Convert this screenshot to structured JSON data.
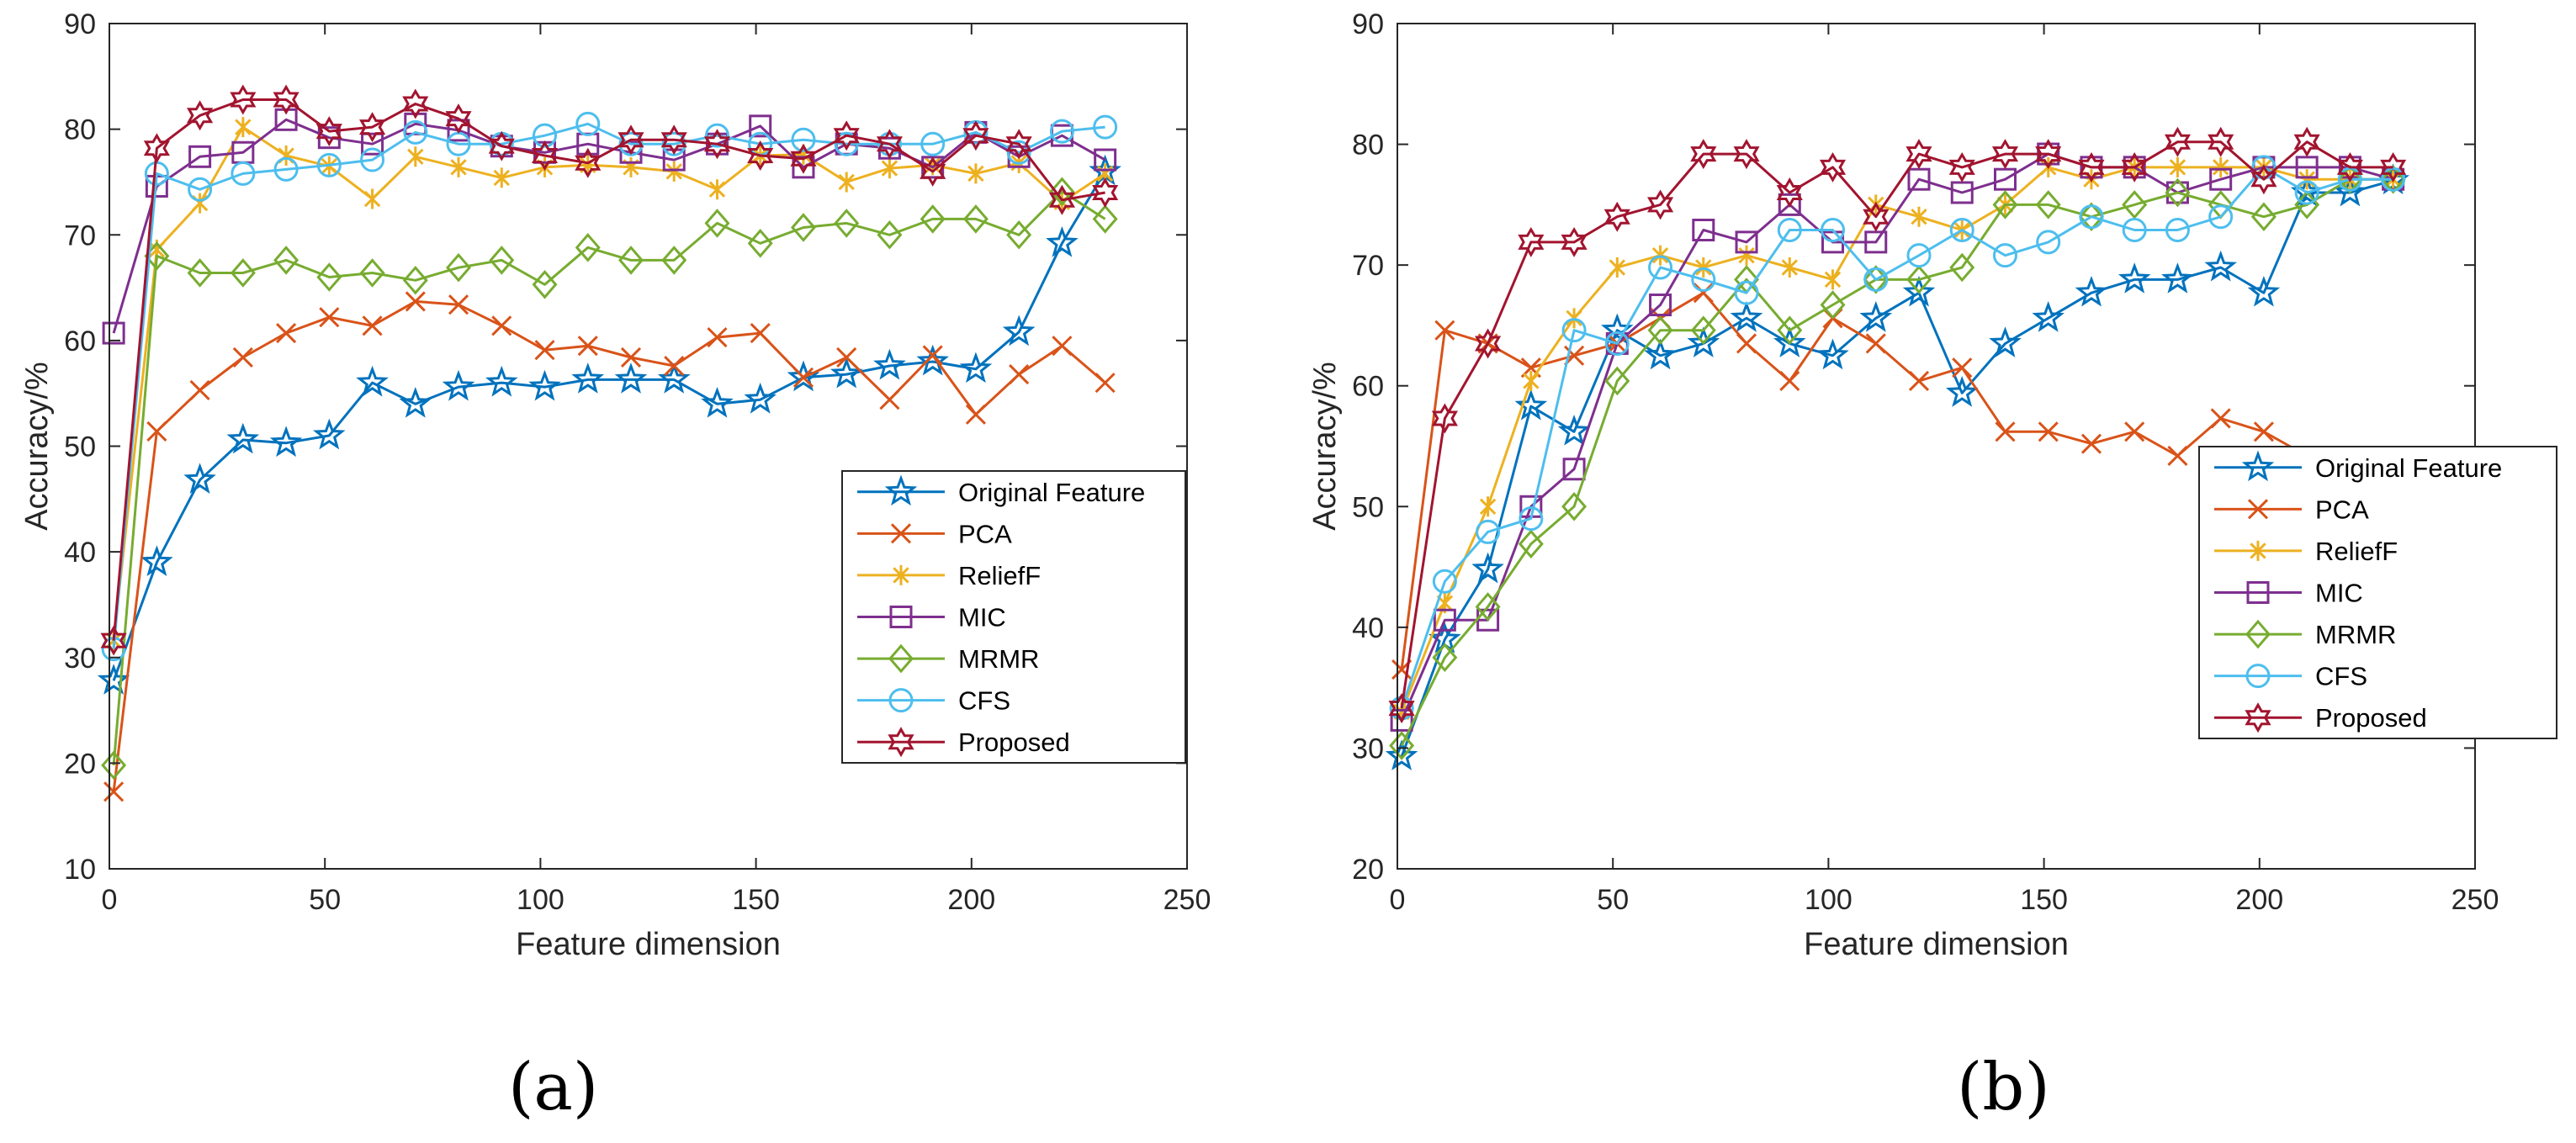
{
  "panels": [
    {
      "label": "(a)",
      "chart_data": {
        "type": "line",
        "title": "",
        "xlabel": "Feature dimension",
        "ylabel": "Accuracy/%",
        "xlim": [
          0,
          250
        ],
        "ylim": [
          10,
          90
        ],
        "xticks": [
          0,
          50,
          100,
          150,
          200,
          250
        ],
        "yticks": [
          10,
          20,
          30,
          40,
          50,
          60,
          70,
          80,
          90
        ],
        "grid": false,
        "legend_position": "lower-right",
        "x": [
          1,
          11,
          21,
          31,
          41,
          51,
          61,
          71,
          81,
          91,
          101,
          111,
          121,
          131,
          141,
          151,
          161,
          171,
          181,
          191,
          201,
          211,
          221,
          231
        ],
        "series": [
          {
            "name": "Original Feature",
            "color": "#0072BD",
            "marker": "star",
            "values": [
              27.8,
              39,
              46.8,
              50.6,
              50.3,
              51,
              56,
              54,
              55.6,
              56,
              55.6,
              56.3,
              56.3,
              56.3,
              54,
              54.4,
              56.5,
              56.8,
              57.6,
              58,
              57.3,
              60.8,
              69.2,
              76
            ]
          },
          {
            "name": "PCA",
            "color": "#D95319",
            "marker": "x",
            "values": [
              17.3,
              51.4,
              55.3,
              58.4,
              60.7,
              62.2,
              61.4,
              63.7,
              63.4,
              61.4,
              59.1,
              59.5,
              58.4,
              57.6,
              60.3,
              60.7,
              56.5,
              58.4,
              54.4,
              58.6,
              53,
              56.8,
              59.5,
              56
            ]
          },
          {
            "name": "ReliefF",
            "color": "#EDB120",
            "marker": "asterisk",
            "values": [
              31.6,
              68.6,
              73,
              80.2,
              77.5,
              76.5,
              73.4,
              77.4,
              76.4,
              75.4,
              76.4,
              76.6,
              76.4,
              76,
              74.3,
              77.5,
              77.6,
              75,
              76.3,
              76.6,
              75.8,
              76.8,
              73.1,
              75.8
            ]
          },
          {
            "name": "MIC",
            "color": "#7E2F8E",
            "marker": "square",
            "values": [
              60.7,
              74.6,
              77.4,
              77.8,
              80.9,
              79.2,
              78.6,
              80.5,
              79.9,
              78.4,
              77.8,
              78.6,
              77.8,
              77.1,
              78.6,
              80.3,
              76.4,
              78.6,
              78.2,
              76.4,
              79.7,
              77.4,
              79.4,
              77.1
            ]
          },
          {
            "name": "MRMR",
            "color": "#77AC30",
            "marker": "diamond",
            "values": [
              19.8,
              68,
              66.4,
              66.4,
              67.6,
              66,
              66.4,
              65.7,
              66.9,
              67.6,
              65.3,
              68.8,
              67.6,
              67.6,
              71.1,
              69.2,
              70.7,
              71.1,
              70,
              71.5,
              71.5,
              70,
              74.1,
              71.5
            ]
          },
          {
            "name": "CFS",
            "color": "#4DBEEE",
            "marker": "circle",
            "values": [
              30.8,
              75.8,
              74.3,
              75.8,
              76.2,
              76.6,
              77.1,
              79.7,
              78.6,
              78.6,
              79.4,
              80.5,
              78.6,
              78.6,
              79.4,
              78.6,
              79,
              78.6,
              78.6,
              78.6,
              79.7,
              77.8,
              79.8,
              80.2
            ]
          },
          {
            "name": "Proposed",
            "color": "#A2142F",
            "marker": "hexagram",
            "values": [
              31.6,
              78.2,
              81.3,
              82.8,
              82.8,
              79.8,
              80.2,
              82.4,
              81,
              78.4,
              77.5,
              76.8,
              79,
              79,
              78.6,
              77.5,
              77.2,
              79.4,
              78.6,
              76,
              79.4,
              78.6,
              73.3,
              74
            ]
          }
        ]
      }
    },
    {
      "label": "(b)",
      "chart_data": {
        "type": "line",
        "title": "",
        "xlabel": "Feature dimension",
        "ylabel": "Accuracy/%",
        "xlim": [
          0,
          250
        ],
        "ylim": [
          20,
          90
        ],
        "xticks": [
          0,
          50,
          100,
          150,
          200,
          250
        ],
        "yticks": [
          20,
          30,
          40,
          50,
          60,
          70,
          80,
          90
        ],
        "grid": false,
        "legend_position": "middle-right",
        "x": [
          1,
          11,
          21,
          31,
          41,
          51,
          61,
          71,
          81,
          91,
          101,
          111,
          121,
          131,
          141,
          151,
          161,
          171,
          181,
          191,
          201,
          211,
          221,
          231
        ],
        "series": [
          {
            "name": "Original Feature",
            "color": "#0072BD",
            "marker": "star",
            "values": [
              29.3,
              39,
              44.8,
              58.3,
              56.2,
              64.6,
              62.5,
              63.5,
              65.6,
              63.5,
              62.5,
              65.6,
              67.7,
              59.4,
              63.5,
              65.6,
              67.7,
              68.8,
              68.8,
              69.8,
              67.7,
              76,
              76,
              77
            ]
          },
          {
            "name": "PCA",
            "color": "#D95319",
            "marker": "x",
            "values": [
              36.5,
              64.6,
              63.5,
              61.5,
              62.5,
              63.5,
              65.6,
              67.7,
              63.5,
              60.4,
              65.6,
              63.5,
              60.4,
              61.5,
              56.2,
              56.2,
              55.2,
              56.2,
              54.2,
              57.3,
              56.2,
              54.2,
              54.2,
              54.2
            ]
          },
          {
            "name": "ReliefF",
            "color": "#EDB120",
            "marker": "asterisk",
            "values": [
              33,
              42,
              50,
              60.4,
              65.6,
              69.8,
              70.8,
              69.8,
              70.8,
              69.8,
              68.8,
              75,
              74,
              72.9,
              75,
              78.1,
              77.1,
              78.1,
              78.1,
              78.1,
              78.1,
              77.1,
              77.1,
              77.1
            ]
          },
          {
            "name": "MIC",
            "color": "#7E2F8E",
            "marker": "square",
            "values": [
              32.3,
              40.6,
              40.6,
              50,
              53.1,
              63.5,
              66.7,
              72.9,
              71.9,
              75,
              71.9,
              71.9,
              77.1,
              76,
              77.1,
              79.2,
              78.1,
              78.1,
              76,
              77.1,
              78.1,
              78.1,
              78.1,
              77.1
            ]
          },
          {
            "name": "MRMR",
            "color": "#77AC30",
            "marker": "diamond",
            "values": [
              30.2,
              37.5,
              41.7,
              46.9,
              50,
              60.4,
              64.6,
              64.6,
              68.8,
              64.6,
              66.7,
              68.8,
              68.8,
              69.8,
              75,
              75,
              74,
              75,
              76,
              75,
              74,
              75,
              77.1,
              77.1
            ]
          },
          {
            "name": "CFS",
            "color": "#4DBEEE",
            "marker": "circle",
            "values": [
              33.3,
              43.8,
              47.9,
              49,
              64.6,
              63.5,
              69.8,
              68.8,
              67.7,
              72.9,
              72.9,
              68.8,
              70.8,
              72.9,
              70.8,
              71.9,
              74,
              72.9,
              72.9,
              74,
              78.1,
              76,
              77.1,
              77.1
            ]
          },
          {
            "name": "Proposed",
            "color": "#A2142F",
            "marker": "hexagram",
            "values": [
              33.3,
              57.3,
              63.5,
              71.9,
              71.9,
              74,
              75,
              79.2,
              79.2,
              76,
              78.1,
              74,
              79.2,
              78.1,
              79.2,
              79.2,
              78.1,
              78.1,
              80.2,
              80.2,
              77.1,
              80.2,
              78.1,
              78.1
            ]
          }
        ]
      }
    }
  ]
}
